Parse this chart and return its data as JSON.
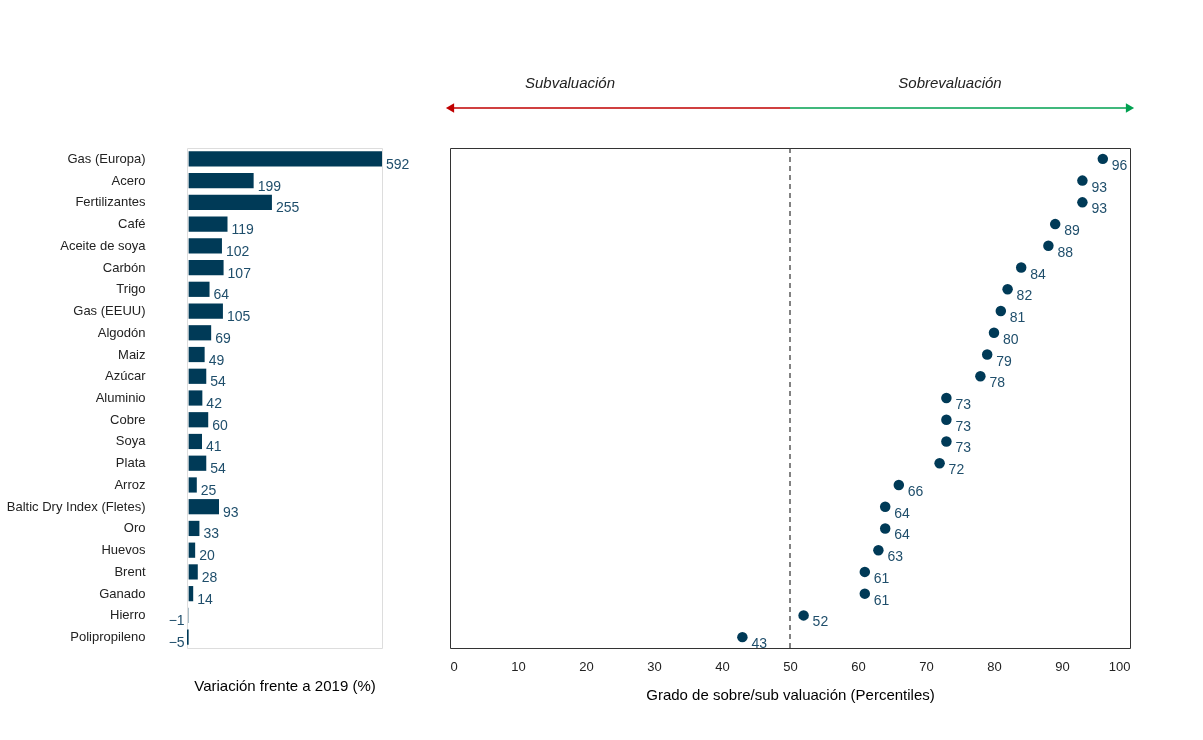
{
  "chart_data": [
    {
      "type": "bar",
      "orientation": "horizontal",
      "xlabel": "Variación frente a 2019 (%)",
      "categories": [
        "Gas (Europa)",
        "Acero",
        "Fertilizantes",
        "Café",
        "Aceite de soya",
        "Carbón",
        "Trigo",
        "Gas (EEUU)",
        "Algodón",
        "Maiz",
        "Azúcar",
        "Aluminio",
        "Cobre",
        "Soya",
        "Plata",
        "Arroz",
        "Baltic Dry Index (Fletes)",
        "Oro",
        "Huevos",
        "Brent",
        "Ganado",
        "Hierro",
        "Polipropileno"
      ],
      "values": [
        592,
        199,
        255,
        119,
        102,
        107,
        64,
        105,
        69,
        49,
        54,
        42,
        60,
        41,
        54,
        25,
        93,
        33,
        20,
        28,
        14,
        -1,
        -5
      ],
      "color": "#003a57",
      "data_labels": true,
      "tick_labels": "y",
      "grid": false
    },
    {
      "type": "scatter",
      "orientation": "horizontal",
      "xlabel": "Grado de sobre/sub valuación (Percentiles)",
      "categories": [
        null,
        null,
        null,
        null,
        null,
        null,
        null,
        null,
        null,
        null,
        null,
        null,
        null,
        null,
        null,
        null,
        null,
        null,
        null,
        null,
        null,
        null,
        null
      ],
      "values": [
        96,
        93,
        93,
        89,
        88,
        84,
        82,
        81,
        80,
        79,
        78,
        73,
        73,
        73,
        72,
        66,
        64,
        64,
        63,
        61,
        61,
        52,
        43
      ],
      "color": "#003a57",
      "marker": "circle",
      "data_labels": true,
      "tick_labels": "x",
      "grid": false,
      "xlim": [
        0,
        100
      ],
      "xticks": [
        0,
        10,
        20,
        30,
        40,
        50,
        60,
        70,
        80,
        90,
        100
      ],
      "ref_lines": [
        {
          "axis": "x",
          "value": 50,
          "color": "#404040",
          "line_style": "dashed"
        }
      ],
      "annotations": [
        "Subvaluación",
        "Sobrevaluación"
      ]
    }
  ]
}
